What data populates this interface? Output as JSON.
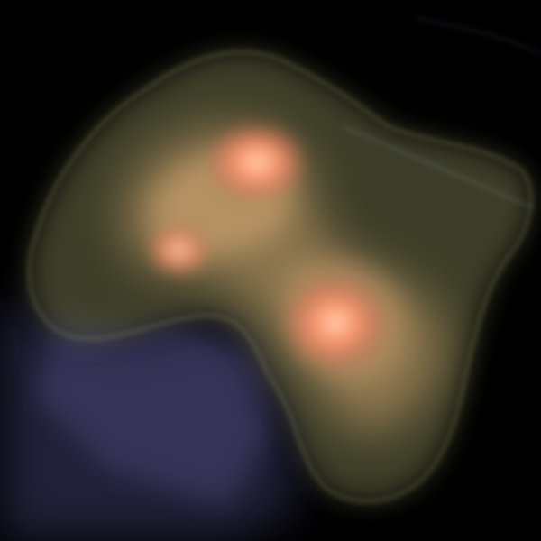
{
  "scene": {
    "subject": "volume-rendered-density-cloud",
    "colors": {
      "background": "#000000",
      "outer_shell": "#6e7048",
      "inner_glow": "#c99a6c",
      "hot_core": "#ff8a66",
      "hot_core_center": "#ffc6a0",
      "bluish_shadow": "#4a4a7e"
    },
    "hotspot_count": 3
  }
}
